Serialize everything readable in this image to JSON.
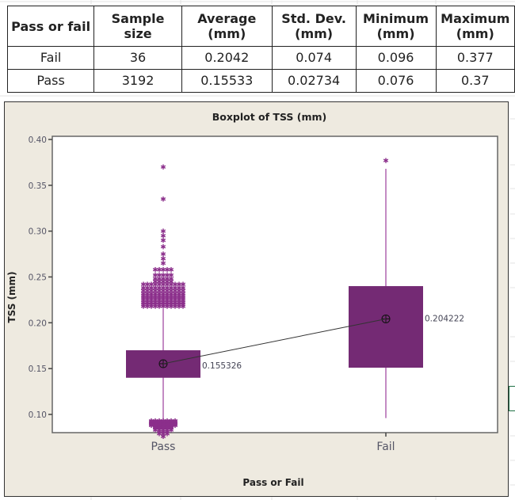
{
  "table": {
    "headers": [
      [
        "Pass or fail"
      ],
      [
        "Sample",
        "size"
      ],
      [
        "Average",
        "(mm)"
      ],
      [
        "Std. Dev.",
        "(mm)"
      ],
      [
        "Minimum",
        "(mm)"
      ],
      [
        "Maximum",
        "(mm)"
      ]
    ],
    "rows": [
      [
        "Fail",
        "36",
        "0.2042",
        "0.074",
        "0.096",
        "0.377"
      ],
      [
        "Pass",
        "3192",
        "0.15533",
        "0.02734",
        "0.076",
        "0.37"
      ]
    ]
  },
  "chart_data": {
    "type": "boxplot",
    "title": "Boxplot of TSS (mm)",
    "xlabel": "Pass or Fail",
    "ylabel": "TSS (mm)",
    "ylim": [
      0.075,
      0.405
    ],
    "yticks": [
      0.1,
      0.15,
      0.2,
      0.25,
      0.3,
      0.35,
      0.4
    ],
    "ytick_labels": [
      "0.10",
      "0.15",
      "0.20",
      "0.25",
      "0.30",
      "0.35",
      "0.40"
    ],
    "categories": [
      "Pass",
      "Fail"
    ],
    "colors": {
      "box": "#742a74",
      "whisker": "#c48bc4",
      "outlier": "#8b2f8b",
      "mean_line": "#333333",
      "frame": "#eeeae0"
    },
    "series": [
      {
        "name": "Pass",
        "q1": 0.14,
        "q3": 0.17,
        "whisker_low": 0.095,
        "whisker_high": 0.215,
        "mean": 0.155326,
        "mean_label": "0.155326",
        "outliers_high": [
          0.37,
          0.335,
          0.3,
          0.295,
          0.29,
          0.283,
          0.275,
          0.27,
          0.265,
          0.258,
          0.252,
          0.248,
          0.245,
          0.242,
          0.238,
          0.235,
          0.232,
          0.23,
          0.228,
          0.226,
          0.224,
          0.222,
          0.22,
          0.218
        ],
        "outliers_low": [
          0.093,
          0.092,
          0.091,
          0.09,
          0.089,
          0.088,
          0.087,
          0.086,
          0.085,
          0.083,
          0.081,
          0.079,
          0.076
        ]
      },
      {
        "name": "Fail",
        "q1": 0.151,
        "q3": 0.24,
        "whisker_low": 0.096,
        "whisker_high": 0.368,
        "mean": 0.204222,
        "mean_label": "0.204222",
        "outliers_high": [
          0.377
        ],
        "outliers_low": []
      }
    ]
  }
}
